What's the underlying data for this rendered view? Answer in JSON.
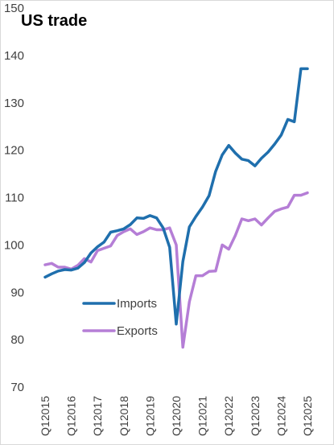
{
  "chart_data": {
    "type": "line",
    "title": "US trade",
    "xlabel": "",
    "ylabel": "",
    "ylim": [
      70,
      150
    ],
    "yticks": [
      70,
      80,
      90,
      100,
      110,
      120,
      130,
      140,
      150
    ],
    "grid": "horizontal",
    "legend": "left-center, inside plot",
    "x": [
      "Q12015",
      "Q22015",
      "Q32015",
      "Q42015",
      "Q12016",
      "Q22016",
      "Q32016",
      "Q42016",
      "Q12017",
      "Q22017",
      "Q32017",
      "Q42017",
      "Q12018",
      "Q22018",
      "Q32018",
      "Q42018",
      "Q12019",
      "Q22019",
      "Q32019",
      "Q42019",
      "Q12020",
      "Q22020",
      "Q32020",
      "Q42020",
      "Q12021",
      "Q22021",
      "Q32021",
      "Q42021",
      "Q12022",
      "Q22022",
      "Q32022",
      "Q42022",
      "Q12023",
      "Q22023",
      "Q32023",
      "Q42023",
      "Q12024",
      "Q22024",
      "Q32024",
      "Q42024",
      "Q12025"
    ],
    "xtick_labels": [
      "Q12015",
      "Q12016",
      "Q12017",
      "Q12018",
      "Q12019",
      "Q12020",
      "Q12021",
      "Q12022",
      "Q12023",
      "Q12024",
      "Q12025"
    ],
    "series": [
      {
        "name": "Imports",
        "color": "#1f6fad",
        "values": [
          93.2,
          93.9,
          94.5,
          94.8,
          94.7,
          95.1,
          96.3,
          98.3,
          99.6,
          100.6,
          102.7,
          103.0,
          103.4,
          104.3,
          105.7,
          105.6,
          106.2,
          105.7,
          103.6,
          99.5,
          83.3,
          96.5,
          103.8,
          106.0,
          108.0,
          110.4,
          115.5,
          119.0,
          121.0,
          119.4,
          118.1,
          117.8,
          116.7,
          118.3,
          119.6,
          121.3,
          123.2,
          126.5,
          126.0,
          137.2,
          137.2
        ]
      },
      {
        "name": "Exports",
        "color": "#b57ed6",
        "values": [
          95.8,
          96.1,
          95.3,
          95.3,
          94.9,
          95.7,
          97.1,
          96.4,
          98.8,
          99.3,
          99.8,
          102.0,
          102.8,
          103.4,
          102.2,
          102.8,
          103.6,
          103.2,
          103.2,
          103.6,
          100.0,
          78.4,
          88.0,
          93.5,
          93.5,
          94.4,
          94.5,
          100.0,
          99.1,
          102.0,
          105.5,
          105.1,
          105.5,
          104.2,
          105.7,
          107.1,
          107.6,
          108.0,
          110.5,
          110.5,
          111.0
        ]
      }
    ]
  }
}
